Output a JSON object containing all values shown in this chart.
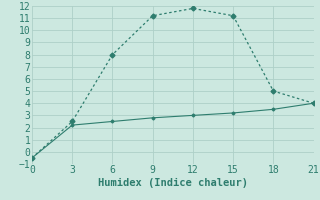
{
  "line1_x": [
    0,
    3,
    6,
    9,
    12,
    15,
    18,
    21
  ],
  "line1_y": [
    -0.5,
    2.5,
    8.0,
    11.2,
    11.8,
    11.2,
    5.0,
    4.0
  ],
  "line2_x": [
    0,
    3,
    6,
    9,
    12,
    15,
    18,
    21
  ],
  "line2_y": [
    -0.5,
    2.2,
    2.5,
    2.8,
    3.0,
    3.2,
    3.5,
    4.0
  ],
  "line_color": "#2e7d6e",
  "bg_color": "#cce8e0",
  "grid_color": "#aed0c8",
  "xlabel": "Humidex (Indice chaleur)",
  "xlim": [
    0,
    21
  ],
  "ylim": [
    -1,
    12
  ],
  "xticks": [
    0,
    3,
    6,
    9,
    12,
    15,
    18,
    21
  ],
  "yticks": [
    -1,
    0,
    1,
    2,
    3,
    4,
    5,
    6,
    7,
    8,
    9,
    10,
    11,
    12
  ],
  "xlabel_fontsize": 7.5,
  "tick_fontsize": 7
}
